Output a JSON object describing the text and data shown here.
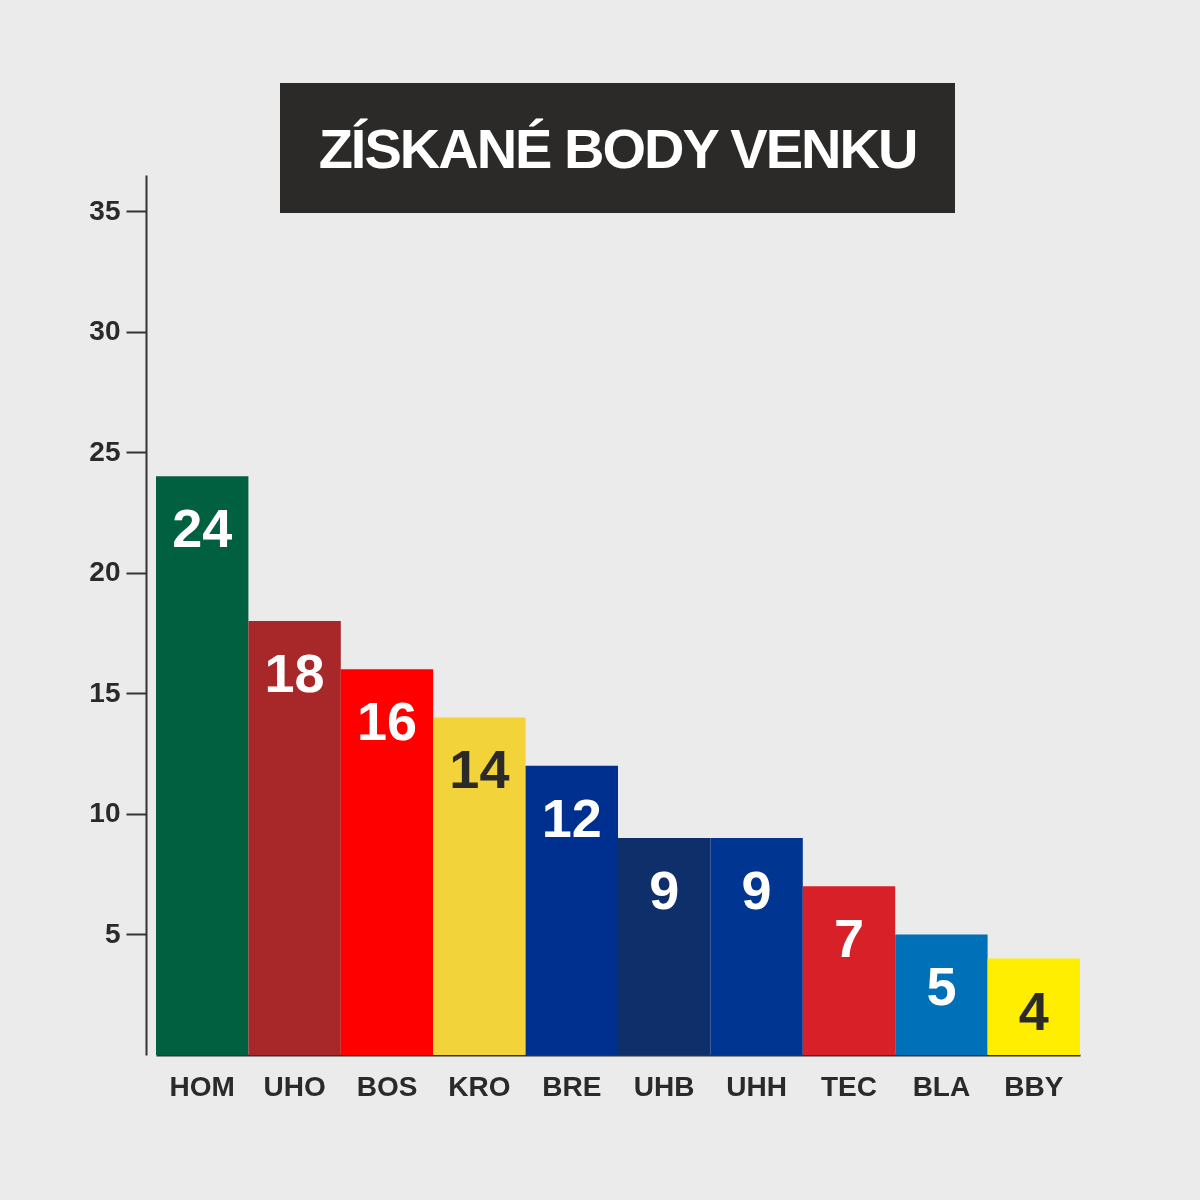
{
  "chart_data": {
    "type": "bar",
    "title": "ZÍSKANÉ BODY VENKU",
    "categories": [
      "HOM",
      "UHO",
      "BOS",
      "KRO",
      "BRE",
      "UHB",
      "UHH",
      "TEC",
      "BLA",
      "BBY"
    ],
    "values": [
      24,
      18,
      16,
      14,
      12,
      9,
      9,
      7,
      5,
      4
    ],
    "colors": [
      "#006040",
      "#a8282a",
      "#ff0000",
      "#f2d43a",
      "#00308f",
      "#0f2f6a",
      "#003592",
      "#d82028",
      "#0070b8",
      "#ffee00"
    ],
    "ylim": [
      0,
      36.5
    ],
    "yticks": [
      5,
      10,
      15,
      20,
      25,
      30,
      35
    ],
    "data_labels": true,
    "grid": false,
    "legend": false
  }
}
